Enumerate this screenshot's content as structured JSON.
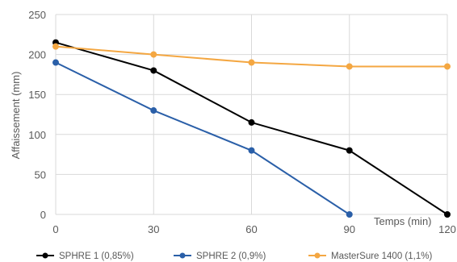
{
  "chart_data": {
    "type": "line",
    "title": "",
    "xlabel": "Temps (min)",
    "ylabel": "Affaissement (mm)",
    "x": [
      0,
      30,
      60,
      90,
      120
    ],
    "xlim": [
      0,
      120
    ],
    "ylim": [
      0,
      250
    ],
    "xticks": [
      "0",
      "30",
      "60",
      "90",
      "120"
    ],
    "yticks": [
      "0",
      "50",
      "100",
      "150",
      "200",
      "250"
    ],
    "grid": true,
    "legend": "bottom",
    "series": [
      {
        "name": "SPHRE 1 (0,85%)",
        "color": "#000000",
        "values": [
          215,
          180,
          115,
          80,
          0
        ]
      },
      {
        "name": "SPHRE 2 (0,9%)",
        "color": "#2a5fa8",
        "values": [
          190,
          130,
          80,
          0,
          null
        ]
      },
      {
        "name": "MasterSure 1400 (1,1%)",
        "color": "#f4a742",
        "values": [
          210,
          200,
          190,
          185,
          185
        ]
      }
    ]
  }
}
